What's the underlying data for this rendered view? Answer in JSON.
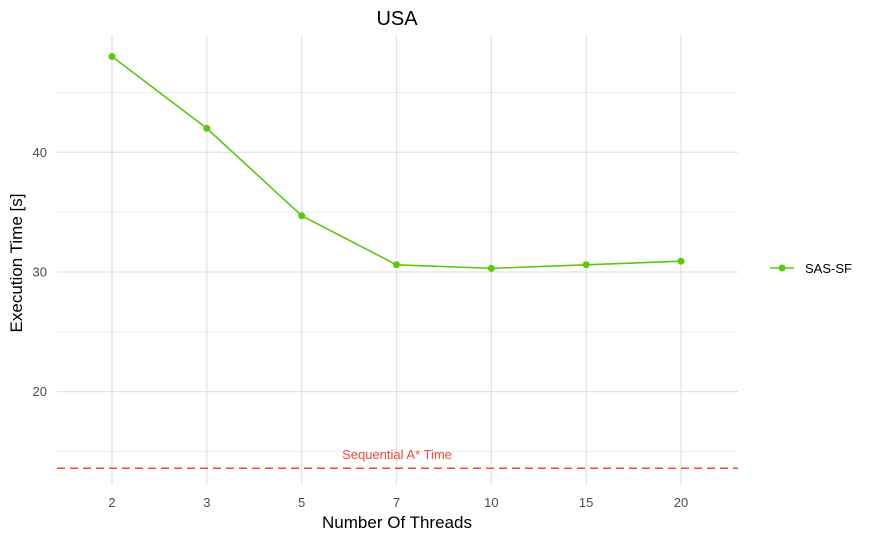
{
  "chart_data": {
    "type": "line",
    "title": "USA",
    "xlabel": "Number Of Threads",
    "ylabel": "Execution Time [s]",
    "categories": [
      "2",
      "3",
      "5",
      "7",
      "10",
      "15",
      "20"
    ],
    "series": [
      {
        "name": "SAS-SF",
        "values": [
          48.0,
          42.0,
          34.7,
          30.6,
          30.3,
          30.6,
          30.9
        ],
        "color": "#5cc80f"
      }
    ],
    "y_major_ticks": [
      20,
      30,
      40
    ],
    "y_minor_ticks": [
      15,
      25,
      35,
      45
    ],
    "ylim": [
      12.2,
      49.8
    ],
    "reference_line": {
      "label": "Sequential A* Time",
      "value": 13.6,
      "color": "#f8463a",
      "style": "dashed"
    },
    "grid": true,
    "legend_position": "right"
  }
}
